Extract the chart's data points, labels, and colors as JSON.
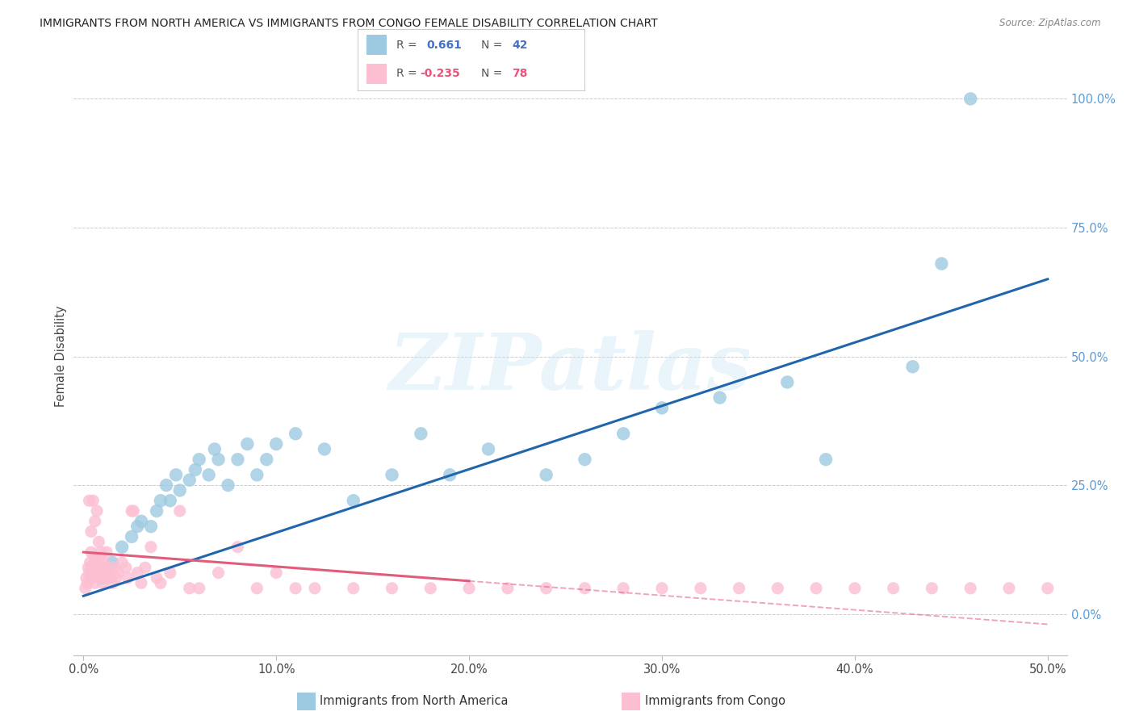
{
  "title": "IMMIGRANTS FROM NORTH AMERICA VS IMMIGRANTS FROM CONGO FEMALE DISABILITY CORRELATION CHART",
  "source": "Source: ZipAtlas.com",
  "ylabel_left": "Female Disability",
  "x_tick_labels": [
    "0.0%",
    "10.0%",
    "20.0%",
    "30.0%",
    "40.0%",
    "50.0%"
  ],
  "x_tick_vals": [
    0,
    10,
    20,
    30,
    40,
    50
  ],
  "y_tick_labels": [
    "0.0%",
    "25.0%",
    "50.0%",
    "75.0%",
    "100.0%"
  ],
  "y_tick_vals": [
    0,
    25,
    50,
    75,
    100
  ],
  "xlim": [
    -0.5,
    51
  ],
  "ylim": [
    -8,
    108
  ],
  "legend_label1": "Immigrants from North America",
  "legend_label2": "Immigrants from Congo",
  "blue_color": "#9ecae1",
  "pink_color": "#fcbfd2",
  "blue_line_color": "#2166ac",
  "pink_line_color": "#e05c7a",
  "north_america_x": [
    1.0,
    1.5,
    2.0,
    2.5,
    2.8,
    3.0,
    3.5,
    3.8,
    4.0,
    4.3,
    4.5,
    4.8,
    5.0,
    5.5,
    5.8,
    6.0,
    6.5,
    6.8,
    7.0,
    7.5,
    8.0,
    8.5,
    9.0,
    9.5,
    10.0,
    11.0,
    12.5,
    14.0,
    16.0,
    17.5,
    19.0,
    21.0,
    24.0,
    26.0,
    28.0,
    30.0,
    33.0,
    36.5,
    38.5,
    43.0,
    44.5,
    46.0
  ],
  "north_america_y": [
    7,
    10,
    13,
    15,
    17,
    18,
    17,
    20,
    22,
    25,
    22,
    27,
    24,
    26,
    28,
    30,
    27,
    32,
    30,
    25,
    30,
    33,
    27,
    30,
    33,
    35,
    32,
    22,
    27,
    35,
    27,
    32,
    27,
    30,
    35,
    40,
    42,
    45,
    30,
    48,
    68,
    100
  ],
  "congo_x": [
    0.1,
    0.15,
    0.2,
    0.25,
    0.3,
    0.35,
    0.4,
    0.4,
    0.45,
    0.5,
    0.55,
    0.6,
    0.65,
    0.7,
    0.75,
    0.8,
    0.85,
    0.9,
    0.95,
    1.0,
    1.05,
    1.1,
    1.15,
    1.2,
    1.25,
    1.3,
    1.4,
    1.5,
    1.6,
    1.7,
    1.8,
    2.0,
    2.2,
    2.3,
    2.5,
    2.6,
    2.8,
    3.0,
    3.2,
    3.5,
    3.8,
    4.0,
    4.5,
    5.0,
    5.5,
    6.0,
    7.0,
    8.0,
    9.0,
    10.0,
    11.0,
    12.0,
    14.0,
    16.0,
    18.0,
    20.0,
    22.0,
    24.0,
    26.0,
    28.0,
    30.0,
    32.0,
    34.0,
    36.0,
    38.0,
    40.0,
    42.0,
    44.0,
    46.0,
    48.0,
    50.0,
    0.3,
    0.5,
    0.7,
    0.6,
    0.4,
    0.8,
    0.9
  ],
  "congo_y": [
    5,
    7,
    6,
    9,
    8,
    10,
    7,
    12,
    9,
    8,
    11,
    6,
    10,
    8,
    9,
    7,
    11,
    8,
    9,
    6,
    10,
    8,
    7,
    12,
    9,
    8,
    7,
    6,
    9,
    7,
    8,
    10,
    9,
    7,
    20,
    20,
    8,
    6,
    9,
    13,
    7,
    6,
    8,
    20,
    5,
    5,
    8,
    13,
    5,
    8,
    5,
    5,
    5,
    5,
    5,
    5,
    5,
    5,
    5,
    5,
    5,
    5,
    5,
    5,
    5,
    5,
    5,
    5,
    5,
    5,
    5,
    22,
    22,
    20,
    18,
    16,
    14,
    12
  ],
  "blue_trend": [
    0,
    3.5,
    50,
    65
  ],
  "pink_trend": [
    0,
    12,
    50,
    -2
  ],
  "pink_solid_end_x": 20,
  "watermark_text": "ZIPatlas"
}
